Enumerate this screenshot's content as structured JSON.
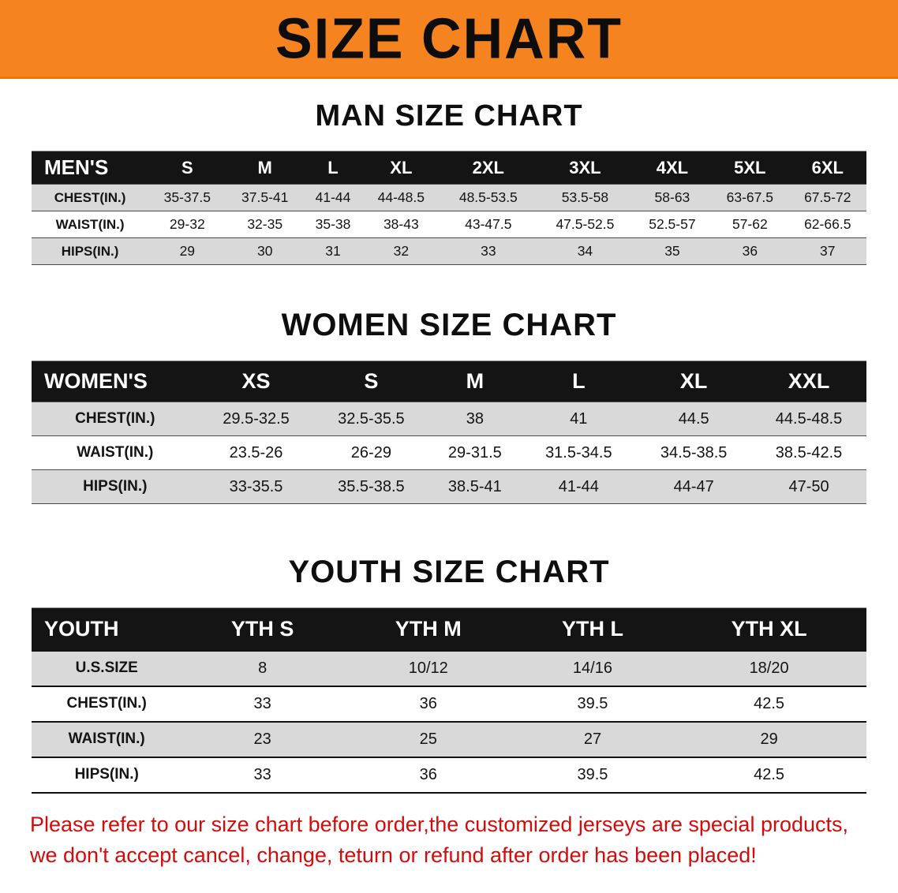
{
  "banner": {
    "title": "SIZE CHART"
  },
  "colors": {
    "banner_bg": "#f5831f",
    "table_header_bg": "#141414",
    "row_stripe": "#d9d9d9",
    "disclaimer_red": "#d40b0b"
  },
  "sections": [
    {
      "heading": "MAN SIZE CHART",
      "table": {
        "columns": [
          "MEN'S",
          "S",
          "M",
          "L",
          "XL",
          "2XL",
          "3XL",
          "4XL",
          "5XL",
          "6XL"
        ],
        "rows": [
          [
            "CHEST(IN.)",
            "35-37.5",
            "37.5-41",
            "41-44",
            "44-48.5",
            "48.5-53.5",
            "53.5-58",
            "58-63",
            "63-67.5",
            "67.5-72"
          ],
          [
            "WAIST(IN.)",
            "29-32",
            "32-35",
            "35-38",
            "38-43",
            "43-47.5",
            "47.5-52.5",
            "52.5-57",
            "57-62",
            "62-66.5"
          ],
          [
            "HIPS(IN.)",
            "29",
            "30",
            "31",
            "32",
            "33",
            "34",
            "35",
            "36",
            "37"
          ]
        ]
      }
    },
    {
      "heading": "WOMEN SIZE CHART",
      "table": {
        "columns": [
          "WOMEN'S",
          "XS",
          "S",
          "M",
          "L",
          "XL",
          "XXL"
        ],
        "rows": [
          [
            "CHEST(IN.)",
            "29.5-32.5",
            "32.5-35.5",
            "38",
            "41",
            "44.5",
            "44.5-48.5"
          ],
          [
            "WAIST(IN.)",
            "23.5-26",
            "26-29",
            "29-31.5",
            "31.5-34.5",
            "34.5-38.5",
            "38.5-42.5"
          ],
          [
            "HIPS(IN.)",
            "33-35.5",
            "35.5-38.5",
            "38.5-41",
            "41-44",
            "44-47",
            "47-50"
          ]
        ]
      }
    },
    {
      "heading": "YOUTH SIZE CHART",
      "table": {
        "columns": [
          "YOUTH",
          "YTH S",
          "YTH M",
          "YTH L",
          "YTH XL"
        ],
        "rows": [
          [
            "U.S.SIZE",
            "8",
            "10/12",
            "14/16",
            "18/20"
          ],
          [
            "CHEST(IN.)",
            "33",
            "36",
            "39.5",
            "42.5"
          ],
          [
            "WAIST(IN.)",
            "23",
            "25",
            "27",
            "29"
          ],
          [
            "HIPS(IN.)",
            "33",
            "36",
            "39.5",
            "42.5"
          ]
        ]
      }
    }
  ],
  "disclaimer": {
    "lines": [
      "Please refer to our size chart before order,the customized jerseys are special products,",
      "we don't accept cancel, change, teturn or refund after order has been placed!"
    ]
  }
}
